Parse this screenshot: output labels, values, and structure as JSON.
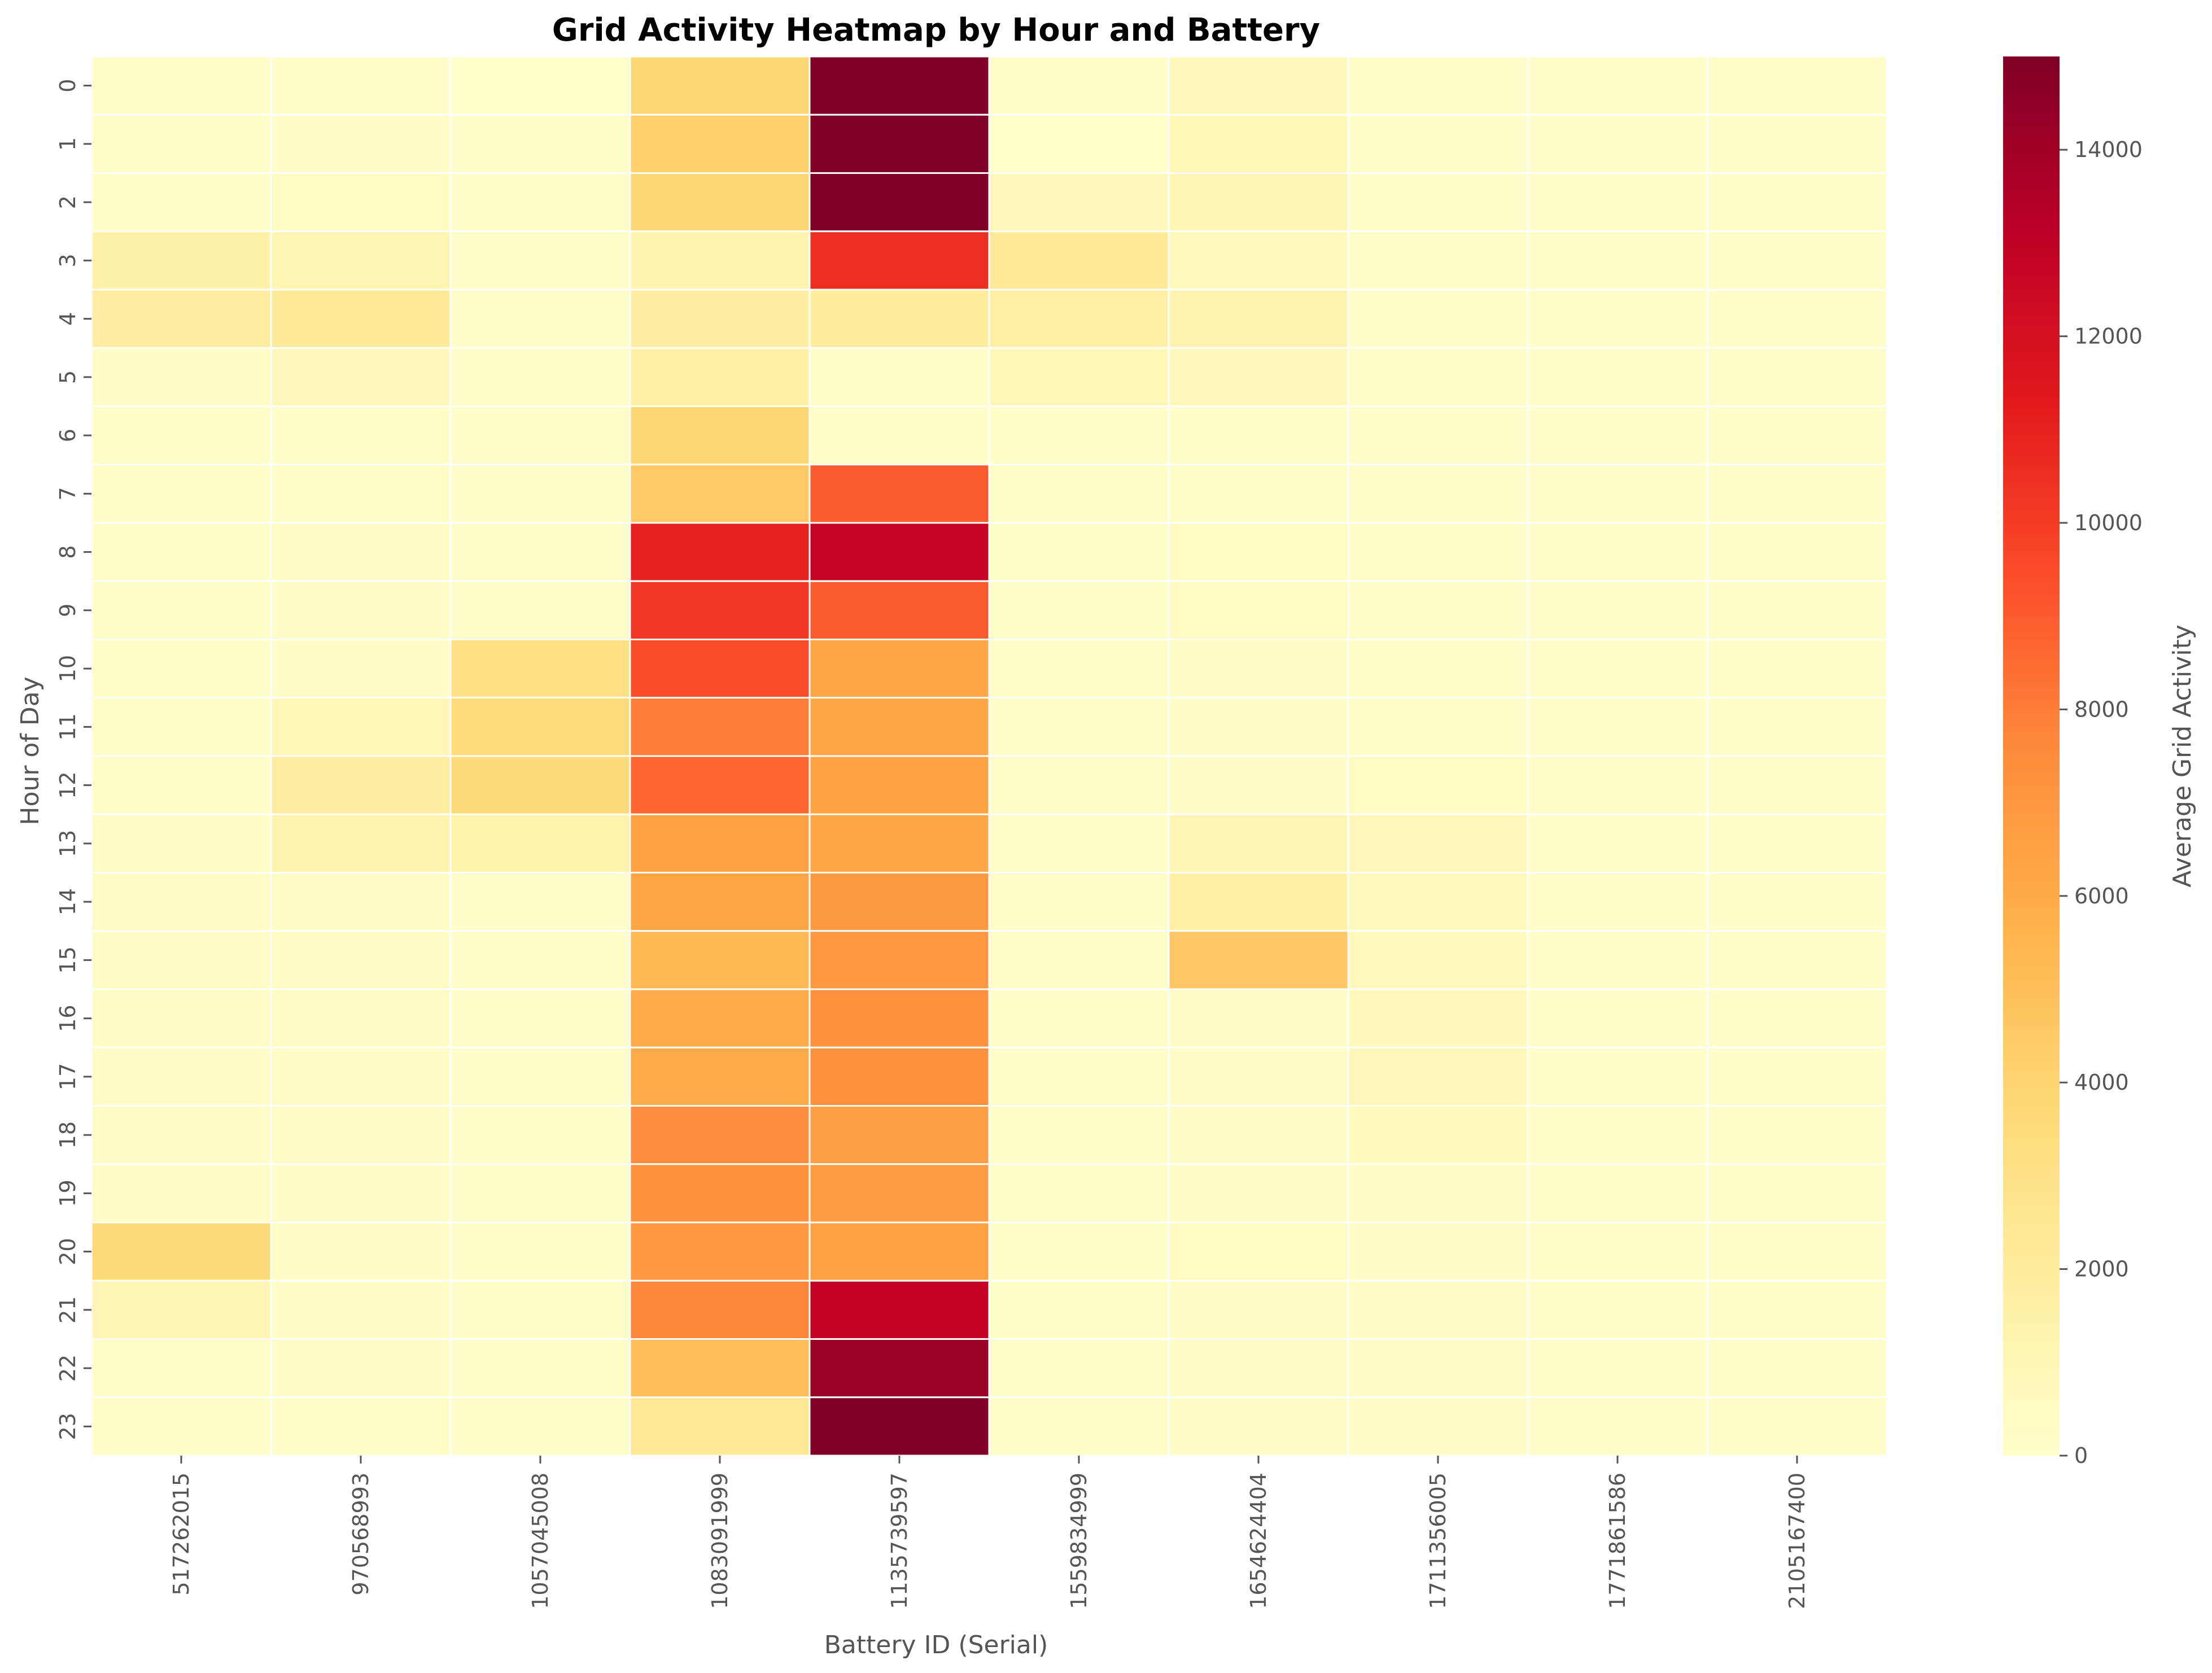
{
  "chart_data": {
    "type": "heatmap",
    "title": "Grid Activity Heatmap by Hour and Battery",
    "xlabel": "Battery ID (Serial)",
    "ylabel": "Hour of Day",
    "colorbar_label": "Average Grid Activity",
    "colormap": "YlOrRd",
    "color_range": [
      0,
      15000
    ],
    "colorbar_ticks": [
      "0",
      "2000",
      "4000",
      "6000",
      "8000",
      "10000",
      "12000",
      "14000"
    ],
    "x_categories": [
      "517262015",
      "970568993",
      "1057045008",
      "1083091999",
      "1135739597",
      "1559834999",
      "1654624404",
      "1711356005",
      "1771861586",
      "2105167400"
    ],
    "y_categories": [
      "0",
      "1",
      "2",
      "3",
      "4",
      "5",
      "6",
      "7",
      "8",
      "9",
      "10",
      "11",
      "12",
      "13",
      "14",
      "15",
      "16",
      "17",
      "18",
      "19",
      "20",
      "21",
      "22",
      "23"
    ],
    "values": [
      [
        150,
        100,
        50,
        3800,
        15500,
        100,
        700,
        100,
        100,
        100
      ],
      [
        150,
        200,
        100,
        4200,
        15000,
        50,
        900,
        100,
        100,
        100
      ],
      [
        150,
        400,
        100,
        3800,
        15500,
        700,
        1000,
        100,
        100,
        100
      ],
      [
        1500,
        1100,
        100,
        1200,
        10500,
        2200,
        600,
        150,
        150,
        100
      ],
      [
        1800,
        2200,
        100,
        1800,
        2000,
        1600,
        1200,
        150,
        150,
        100
      ],
      [
        250,
        700,
        100,
        1600,
        150,
        900,
        700,
        150,
        150,
        100
      ],
      [
        150,
        150,
        100,
        3800,
        150,
        150,
        150,
        100,
        100,
        100
      ],
      [
        150,
        150,
        100,
        4500,
        9000,
        150,
        150,
        100,
        100,
        100
      ],
      [
        150,
        300,
        100,
        11000,
        12800,
        150,
        500,
        100,
        100,
        100
      ],
      [
        150,
        200,
        100,
        10200,
        9000,
        150,
        500,
        100,
        100,
        100
      ],
      [
        150,
        200,
        3100,
        9500,
        6300,
        100,
        250,
        100,
        100,
        100
      ],
      [
        150,
        900,
        3500,
        8000,
        6200,
        100,
        250,
        100,
        100,
        100
      ],
      [
        150,
        1800,
        3600,
        8700,
        6400,
        100,
        200,
        500,
        100,
        100
      ],
      [
        200,
        1200,
        1400,
        6500,
        6300,
        100,
        1100,
        800,
        100,
        100
      ],
      [
        200,
        300,
        100,
        6300,
        6900,
        100,
        1600,
        600,
        100,
        100
      ],
      [
        200,
        300,
        100,
        5300,
        7000,
        100,
        4600,
        600,
        100,
        100
      ],
      [
        200,
        300,
        100,
        6000,
        7300,
        100,
        300,
        700,
        100,
        100
      ],
      [
        200,
        300,
        100,
        6000,
        7300,
        100,
        300,
        800,
        100,
        100
      ],
      [
        200,
        300,
        100,
        7500,
        6600,
        100,
        200,
        600,
        100,
        100
      ],
      [
        200,
        200,
        100,
        7300,
        6800,
        100,
        200,
        300,
        100,
        100
      ],
      [
        3600,
        200,
        100,
        7000,
        6500,
        100,
        500,
        200,
        100,
        100
      ],
      [
        1100,
        200,
        100,
        7700,
        12900,
        100,
        200,
        300,
        100,
        100
      ],
      [
        150,
        200,
        100,
        5000,
        14200,
        100,
        250,
        200,
        100,
        100
      ],
      [
        150,
        150,
        100,
        2400,
        15500,
        100,
        200,
        200,
        100,
        100
      ]
    ]
  }
}
